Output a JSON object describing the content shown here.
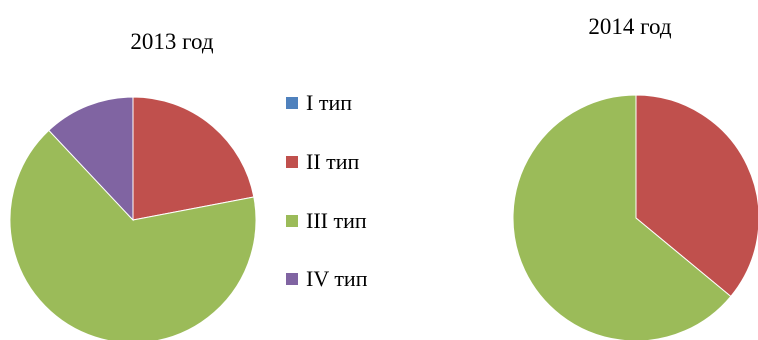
{
  "chart_data": [
    {
      "type": "pie",
      "title": "2013 год",
      "categories": [
        "I тип",
        "II тип",
        "III тип",
        "IV тип"
      ],
      "values": [
        0,
        22,
        66,
        12
      ],
      "colors": [
        "#4F81BD",
        "#C0504D",
        "#9BBB59",
        "#8064A2"
      ],
      "legend_position": "right"
    },
    {
      "type": "pie",
      "title": "2014 год",
      "categories": [
        "I тип",
        "II тип",
        "III тип",
        "IV тип"
      ],
      "values": [
        0,
        36,
        64,
        0
      ],
      "colors": [
        "#4F81BD",
        "#C0504D",
        "#9BBB59",
        "#8064A2"
      ],
      "legend_position": "none"
    }
  ],
  "legend": {
    "items": [
      {
        "label": "I тип",
        "color": "#4F81BD"
      },
      {
        "label": "II тип",
        "color": "#C0504D"
      },
      {
        "label": "III тип",
        "color": "#9BBB59"
      },
      {
        "label": "IV тип",
        "color": "#8064A2"
      }
    ]
  }
}
